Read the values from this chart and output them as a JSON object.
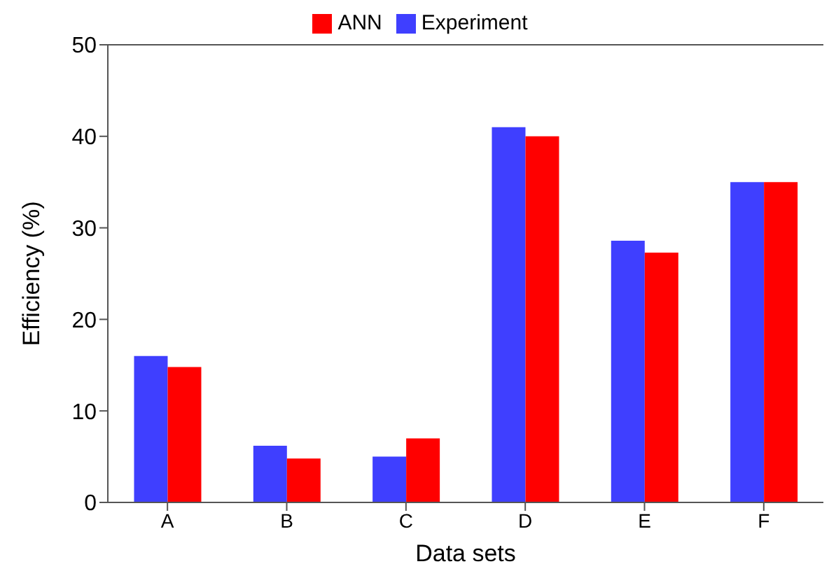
{
  "chart_data": {
    "type": "bar",
    "xlabel": "Data sets",
    "ylabel": "Efficiency (%)",
    "categories": [
      "A",
      "B",
      "C",
      "D",
      "E",
      "F"
    ],
    "series": [
      {
        "name": "Experiment",
        "color": "#3f3fff",
        "values": [
          16.0,
          6.2,
          5.0,
          41.0,
          28.6,
          35.0
        ]
      },
      {
        "name": "ANN",
        "color": "#ff0000",
        "values": [
          14.8,
          4.8,
          7.0,
          40.0,
          27.3,
          35.0
        ]
      }
    ],
    "ylim": [
      0,
      50
    ],
    "yticks": [
      0,
      10,
      20,
      30,
      40,
      50
    ],
    "grid": false,
    "legend": "top"
  }
}
